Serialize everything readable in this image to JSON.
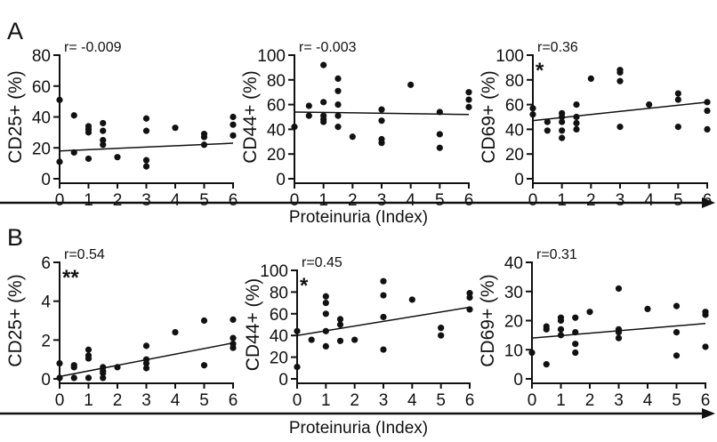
{
  "figure": {
    "panel_labels": [
      "A",
      "B"
    ],
    "x_axis_title": "Proteinuria (Index)"
  },
  "chart_data": [
    {
      "type": "scatter",
      "panel": "A",
      "ylabel": "CD25+ (%)",
      "xlim": [
        0,
        6
      ],
      "ylim": [
        0,
        80
      ],
      "xticks": [
        "0",
        "1",
        "2",
        "3",
        "4",
        "5",
        "6"
      ],
      "yticks": [
        "0",
        "20",
        "40",
        "60",
        "80"
      ],
      "r_label": "r= -0.009",
      "significance": "",
      "x": [
        0,
        0,
        0.5,
        0.5,
        1,
        1,
        1,
        1,
        1.5,
        1.5,
        1.5,
        1.5,
        2,
        3,
        3,
        3,
        3,
        4,
        5,
        5,
        5,
        6,
        6,
        6
      ],
      "y": [
        51,
        11,
        41,
        17,
        34,
        32,
        30,
        13,
        36,
        31,
        25,
        22,
        14,
        39,
        31,
        12,
        8,
        33,
        29,
        27,
        22,
        40,
        35,
        28
      ],
      "fit_line": [
        [
          0,
          18
        ],
        [
          6,
          23
        ]
      ]
    },
    {
      "type": "scatter",
      "panel": "A",
      "ylabel": "CD44+ (%)",
      "xlim": [
        0,
        6
      ],
      "ylim": [
        0,
        100
      ],
      "xticks": [
        "0",
        "1",
        "2",
        "3",
        "4",
        "5",
        "6"
      ],
      "yticks": [
        "0",
        "20",
        "40",
        "60",
        "80",
        "100"
      ],
      "r_label": "r= -0.003",
      "significance": "",
      "x": [
        0,
        0.5,
        0.5,
        1,
        1,
        1,
        1,
        1,
        1.5,
        1.5,
        1.5,
        1.5,
        1.5,
        2,
        3,
        3,
        3,
        3,
        4,
        5,
        5,
        5,
        6,
        6,
        6
      ],
      "y": [
        42,
        59,
        51,
        92,
        62,
        51,
        48,
        46,
        81,
        71,
        60,
        51,
        42,
        34,
        56,
        47,
        32,
        29,
        76,
        54,
        36,
        25,
        70,
        64,
        58
      ],
      "fit_line": [
        [
          0,
          54
        ],
        [
          6,
          52
        ]
      ]
    },
    {
      "type": "scatter",
      "panel": "A",
      "ylabel": "CD69+ (%)",
      "xlim": [
        0,
        6
      ],
      "ylim": [
        0,
        100
      ],
      "xticks": [
        "0",
        "1",
        "2",
        "3",
        "4",
        "5",
        "6"
      ],
      "yticks": [
        "0",
        "20",
        "40",
        "60",
        "80",
        "100"
      ],
      "r_label": "r=0.36",
      "significance": "*",
      "x": [
        0,
        0,
        0.5,
        0.5,
        1,
        1,
        1,
        1,
        1,
        1.5,
        1.5,
        1.5,
        1.5,
        2,
        3,
        3,
        3,
        3,
        4,
        5,
        5,
        5,
        6,
        6,
        6
      ],
      "y": [
        57,
        52,
        46,
        39,
        53,
        50,
        46,
        39,
        33,
        60,
        50,
        45,
        40,
        81,
        88,
        86,
        79,
        42,
        60,
        69,
        64,
        42,
        62,
        55,
        40
      ],
      "fit_line": [
        [
          0,
          47
        ],
        [
          6,
          62
        ]
      ]
    },
    {
      "type": "scatter",
      "panel": "B",
      "ylabel": "CD25+ (%)",
      "xlim": [
        0,
        6
      ],
      "ylim": [
        0,
        6
      ],
      "xticks": [
        "0",
        "1",
        "2",
        "3",
        "4",
        "5",
        "6"
      ],
      "yticks": [
        "0",
        "2",
        "4",
        "6"
      ],
      "r_label": "r=0.54",
      "significance": "**",
      "x": [
        0,
        0,
        0.5,
        0.5,
        0.5,
        1,
        1,
        1,
        1,
        1.5,
        1.5,
        1.5,
        1.5,
        2,
        3,
        3,
        3,
        3,
        4,
        5,
        5,
        6,
        6,
        6,
        6
      ],
      "y": [
        0.8,
        0.05,
        0.7,
        0.6,
        0.05,
        1.5,
        1.2,
        1.05,
        0.05,
        0.6,
        0.4,
        0.3,
        0.05,
        0.6,
        1.7,
        1.0,
        0.8,
        0.55,
        2.4,
        3.0,
        0.7,
        3.05,
        2.1,
        1.8,
        1.6
      ],
      "fit_line": [
        [
          0,
          0.12
        ],
        [
          6,
          1.85
        ]
      ]
    },
    {
      "type": "scatter",
      "panel": "B",
      "ylabel": "CD44+ (%)",
      "xlim": [
        0,
        6
      ],
      "ylim": [
        0,
        100
      ],
      "xticks": [
        "0",
        "1",
        "2",
        "3",
        "4",
        "5",
        "6"
      ],
      "yticks": [
        "0",
        "20",
        "40",
        "60",
        "80",
        "100"
      ],
      "r_label": "r=0.45",
      "significance": "*",
      "x": [
        0,
        0,
        0.5,
        1,
        1,
        1,
        1,
        1,
        1.5,
        1.5,
        1.5,
        2,
        3,
        3,
        3,
        3,
        4,
        5,
        5,
        6,
        6,
        6
      ],
      "y": [
        44,
        11,
        36,
        76,
        70,
        60,
        44,
        30,
        55,
        50,
        35,
        36,
        90,
        77,
        57,
        27,
        73,
        47,
        40,
        79,
        75,
        64
      ],
      "fit_line": [
        [
          0,
          40
        ],
        [
          6,
          66
        ]
      ]
    },
    {
      "type": "scatter",
      "panel": "B",
      "ylabel": "CD69+ (%)",
      "xlim": [
        0,
        6
      ],
      "ylim": [
        0,
        40
      ],
      "xticks": [
        "0",
        "1",
        "2",
        "3",
        "4",
        "5",
        "6"
      ],
      "yticks": [
        "0",
        "10",
        "20",
        "30",
        "40"
      ],
      "r_label": "r=0.31",
      "significance": "",
      "x": [
        0,
        0.5,
        0.5,
        0.5,
        1,
        1,
        1,
        1,
        1.5,
        1.5,
        1.5,
        1.5,
        2,
        3,
        3,
        3,
        3,
        4,
        5,
        5,
        5,
        6,
        6,
        6
      ],
      "y": [
        9,
        18,
        17,
        5,
        21,
        20,
        17,
        15,
        21,
        16,
        12,
        9,
        23,
        31,
        17,
        16,
        14,
        24,
        25,
        16,
        8,
        23,
        22,
        11
      ],
      "fit_line": [
        [
          0,
          14
        ],
        [
          6,
          19
        ]
      ]
    }
  ]
}
